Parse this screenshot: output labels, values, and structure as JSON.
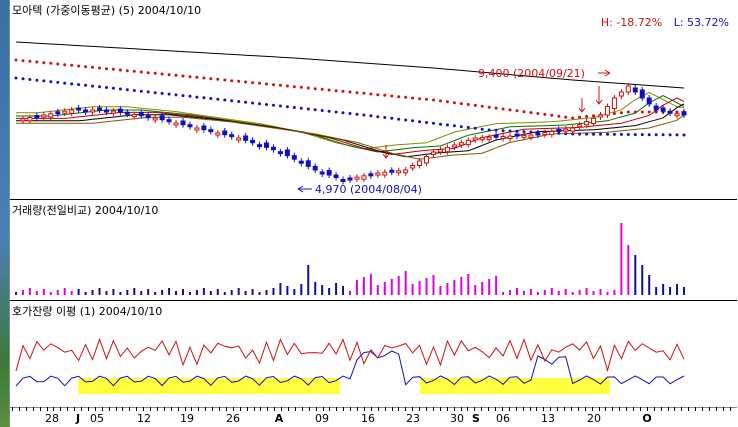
{
  "price_panel": {
    "title": "모아텍 (가중이동평균) (5) 2004/10/10",
    "high_label": "H: -18.72%",
    "low_label": "L: 53.72%",
    "high_annotation": "9,400 (2004/09/21)",
    "low_annotation": "4,970 (2004/08/04)"
  },
  "volume_panel": {
    "title": "거래량(전일비교) 2004/10/10"
  },
  "spread_panel": {
    "title": "호가잔량 이평 (1) 2004/10/10"
  },
  "x_axis": {
    "labels": [
      {
        "text": "28",
        "bold": false
      },
      {
        "text": "J",
        "bold": true
      },
      {
        "text": "05",
        "bold": false
      },
      {
        "text": "12",
        "bold": false
      },
      {
        "text": "19",
        "bold": false
      },
      {
        "text": "26",
        "bold": false
      },
      {
        "text": "A",
        "bold": true
      },
      {
        "text": "09",
        "bold": false
      },
      {
        "text": "16",
        "bold": false
      },
      {
        "text": "23",
        "bold": false
      },
      {
        "text": "30",
        "bold": false
      },
      {
        "text": "S",
        "bold": true
      },
      {
        "text": "06",
        "bold": false
      },
      {
        "text": "13",
        "bold": false
      },
      {
        "text": "20",
        "bold": false
      },
      {
        "text": "O",
        "bold": true
      }
    ]
  },
  "colors": {
    "up_candle": "#d01010",
    "down_candle": "#1010c0",
    "red_dots": "#d01010",
    "blue_dots": "#1010c0",
    "volume_magenta": "#e000e0",
    "volume_navy": "#101090",
    "highlight": "#ffff40"
  }
}
